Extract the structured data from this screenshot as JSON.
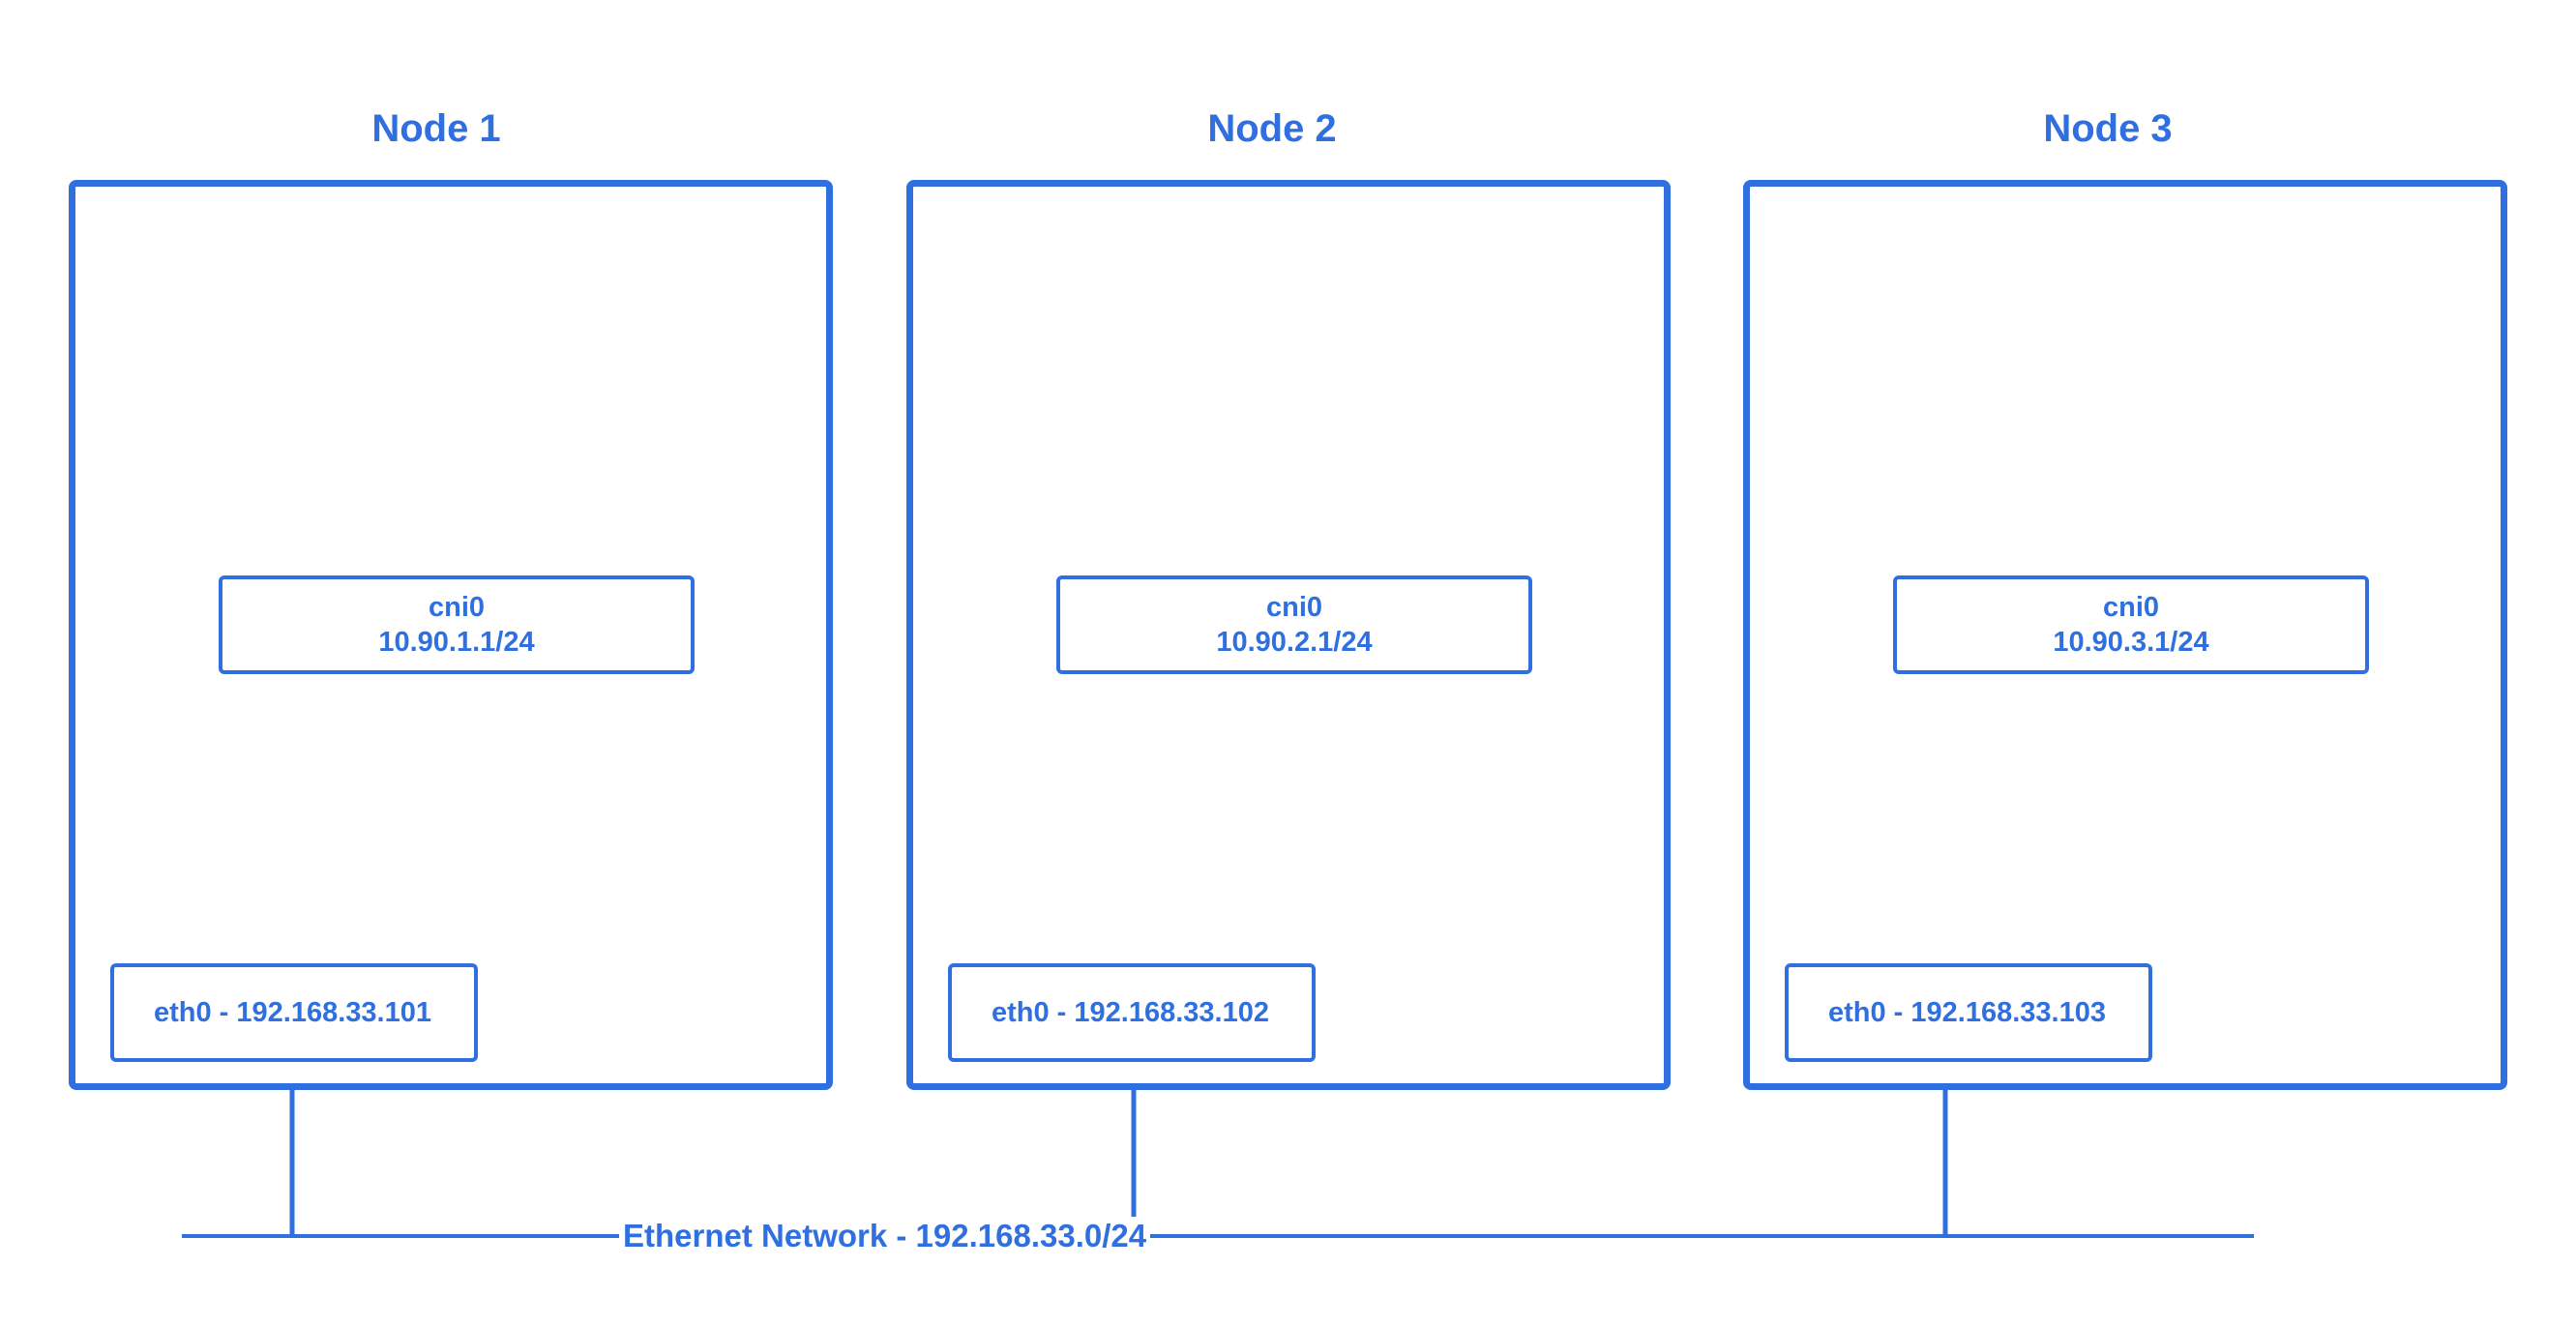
{
  "nodes": [
    {
      "title": "Node 1",
      "cni": {
        "name": "cni0",
        "ip": "10.90.1.1/24"
      },
      "eth": "eth0 - 192.168.33.101"
    },
    {
      "title": "Node 2",
      "cni": {
        "name": "cni0",
        "ip": "10.90.2.1/24"
      },
      "eth": "eth0 - 192.168.33.102"
    },
    {
      "title": "Node 3",
      "cni": {
        "name": "cni0",
        "ip": "10.90.3.1/24"
      },
      "eth": "eth0 - 192.168.33.103"
    }
  ],
  "network": {
    "label": "Ethernet Network - 192.168.33.0/24"
  },
  "colors": {
    "accent": "#2f6fdf",
    "background": "#ffffff"
  }
}
